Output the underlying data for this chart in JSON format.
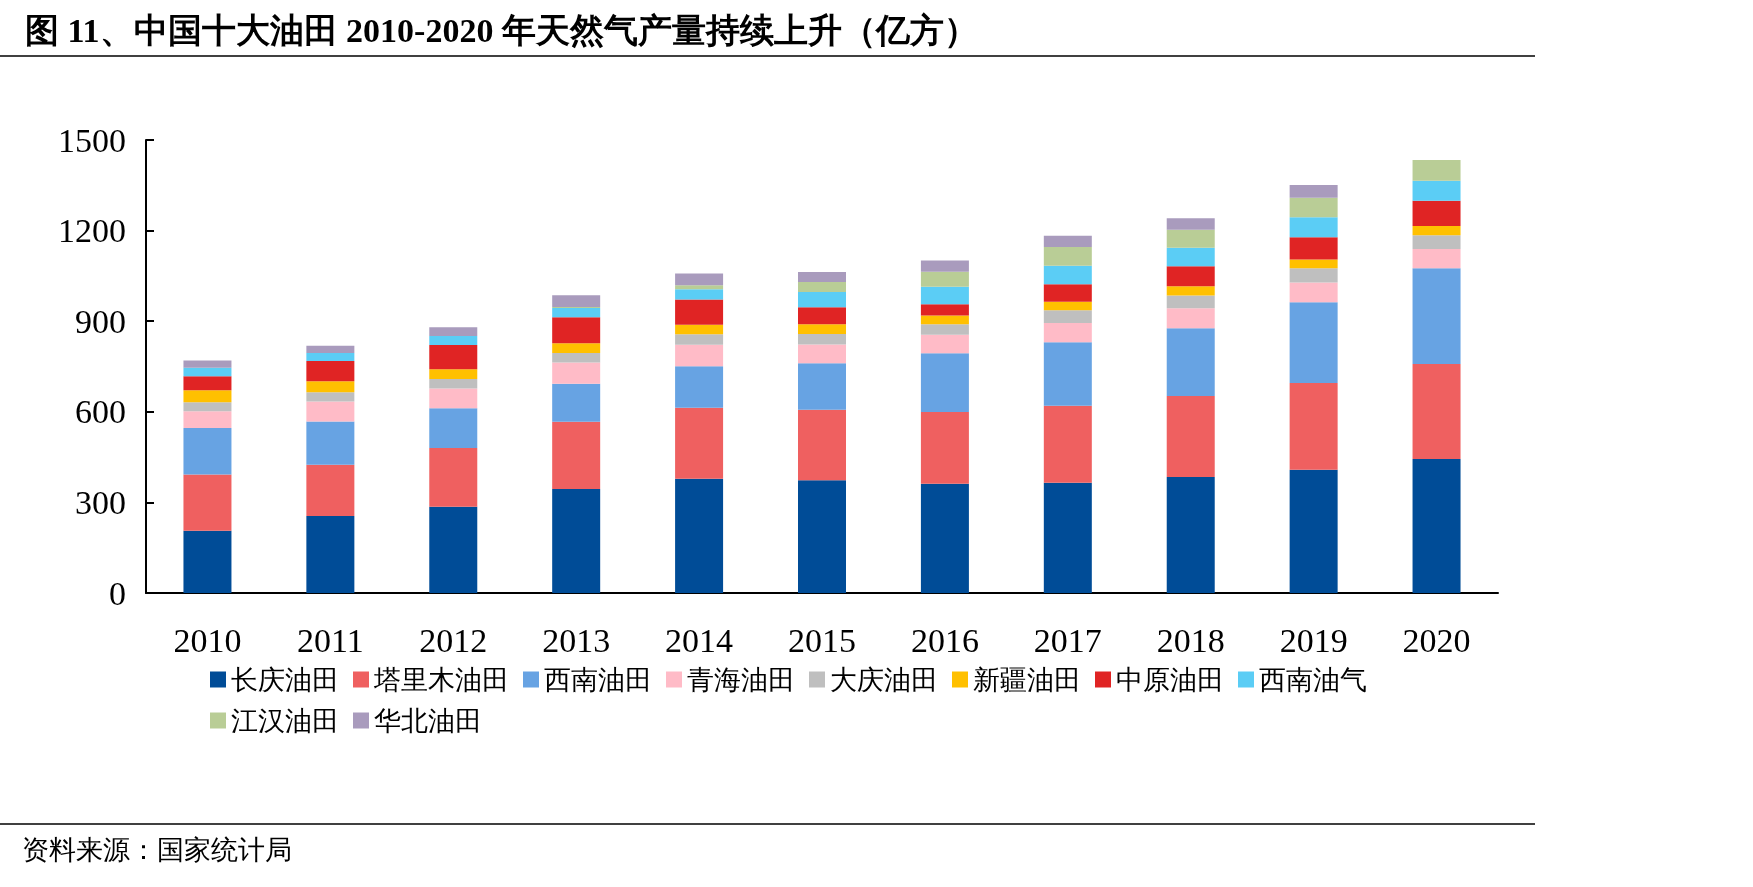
{
  "chart_data": {
    "type": "bar",
    "title": "图 11、中国十大油田 2010-2020 年天然气产量持续上升（亿方）",
    "stacked": true,
    "categories": [
      "2010",
      "2011",
      "2012",
      "2013",
      "2014",
      "2015",
      "2016",
      "2017",
      "2018",
      "2019",
      "2020"
    ],
    "series": [
      {
        "name": "长庆油田",
        "color": "#004c97",
        "values": [
          206,
          255,
          286,
          344,
          378,
          373,
          362,
          365,
          384,
          408,
          444
        ]
      },
      {
        "name": "塔里木油田",
        "color": "#ef6060",
        "values": [
          186,
          170,
          194,
          223,
          235,
          234,
          237,
          255,
          268,
          287,
          314
        ]
      },
      {
        "name": "西南油田",
        "color": "#67a3e3",
        "values": [
          154,
          143,
          132,
          126,
          138,
          154,
          195,
          210,
          225,
          268,
          317
        ]
      },
      {
        "name": "青海油田",
        "color": "#ffbbc7",
        "values": [
          56,
          66,
          65,
          70,
          71,
          62,
          61,
          64,
          66,
          65,
          64
        ]
      },
      {
        "name": "大庆油田",
        "color": "#bfbfbf",
        "values": [
          30,
          31,
          32,
          32,
          35,
          35,
          35,
          42,
          42,
          47,
          46
        ]
      },
      {
        "name": "新疆油田",
        "color": "#ffc000",
        "values": [
          39,
          36,
          32,
          32,
          31,
          32,
          29,
          28,
          31,
          29,
          30
        ]
      },
      {
        "name": "中原油田",
        "color": "#e02424",
        "values": [
          47,
          67,
          80,
          86,
          84,
          56,
          37,
          58,
          66,
          74,
          84
        ]
      },
      {
        "name": "西南油气",
        "color": "#5bcdf5",
        "values": [
          28,
          27,
          30,
          31,
          34,
          51,
          58,
          62,
          61,
          66,
          66
        ]
      },
      {
        "name": "江汉油田",
        "color": "#b9cd96",
        "values": [
          0,
          0,
          0,
          3,
          13,
          33,
          50,
          62,
          60,
          65,
          69
        ]
      },
      {
        "name": "华北油田",
        "color": "#a99bbd",
        "values": [
          24,
          24,
          29,
          39,
          39,
          33,
          37,
          37,
          38,
          42,
          0
        ]
      }
    ],
    "ylim": [
      0,
      1500
    ],
    "yticks": [
      0,
      300,
      600,
      900,
      {
        "value": 1200,
        "label": "1200"
      },
      {
        "value": 1500,
        "label": "1500"
      }
    ],
    "grid": false,
    "legend": "bottom",
    "annotations": [
      "资料来源：国家统计局"
    ]
  }
}
